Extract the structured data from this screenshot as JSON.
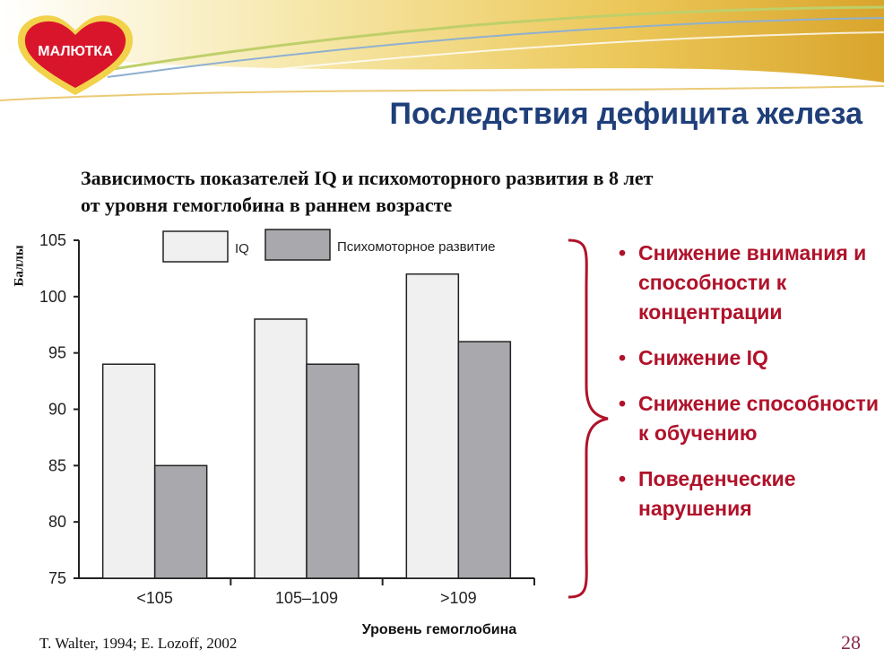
{
  "header": {
    "logo_text": "МАЛЮТКА",
    "title": "Последствия дефицита железа"
  },
  "subtitle": {
    "line1": "Зависимость показателей IQ и психомоторного развития в 8 лет",
    "line2": "от уровня гемоглобина в раннем возрасте"
  },
  "chart_data": {
    "type": "bar",
    "categories": [
      "<105",
      "105–109",
      ">109"
    ],
    "series": [
      {
        "name": "IQ",
        "values": [
          94,
          98,
          102
        ],
        "color": "#f0f0f0"
      },
      {
        "name": "Психомоторное развитие",
        "values": [
          85,
          94,
          96
        ],
        "color": "#a9a9ad"
      }
    ],
    "ylabel": "Баллы",
    "xlabel": "Уровень гемоглобина",
    "ylim": [
      75,
      105
    ],
    "yticks": [
      75,
      80,
      85,
      90,
      95,
      100,
      105
    ],
    "grid": false,
    "legend": "top"
  },
  "bullets": [
    {
      "text": "Снижение внимания и способности к концентрации"
    },
    {
      "text": "Снижение IQ"
    },
    {
      "text": "Снижение способности к обучению"
    },
    {
      "text": "Поведенческие нарушения"
    }
  ],
  "footer": {
    "citation": "T. Walter, 1994; E. Lozoff, 2002",
    "page_number": "28"
  },
  "colors": {
    "title": "#1f3f7a",
    "accent": "#b0122a",
    "bar_light": "#f0f0f0",
    "bar_dark": "#a9a9ad"
  }
}
